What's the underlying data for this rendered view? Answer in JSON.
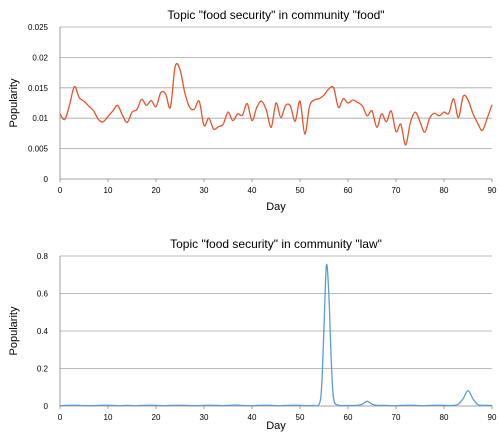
{
  "chart_data": [
    {
      "type": "line",
      "title": "Topic \"food security\" in community \"food\"",
      "xlabel": "Day",
      "ylabel": "Popularity",
      "xlim": [
        0,
        90
      ],
      "ylim": [
        0,
        0.025
      ],
      "xticks": [
        "0",
        "10",
        "20",
        "30",
        "40",
        "50",
        "60",
        "70",
        "80",
        "90"
      ],
      "yticks": [
        "0",
        "0.005",
        "0.01",
        "0.015",
        "0.02",
        "0.025"
      ],
      "grid": true,
      "series": [
        {
          "color": "#e8532a",
          "x": [
            0,
            1,
            2,
            3,
            4,
            5,
            6,
            7,
            8,
            9,
            10,
            11,
            12,
            13,
            14,
            15,
            16,
            17,
            18,
            19,
            20,
            21,
            22,
            23,
            24,
            25,
            26,
            27,
            28,
            29,
            30,
            31,
            32,
            33,
            34,
            35,
            36,
            37,
            38,
            39,
            40,
            41,
            42,
            43,
            44,
            45,
            46,
            47,
            48,
            49,
            50,
            51,
            52,
            53,
            54,
            55,
            56,
            57,
            58,
            59,
            60,
            61,
            62,
            63,
            64,
            65,
            66,
            67,
            68,
            69,
            70,
            71,
            72,
            73,
            74,
            75,
            76,
            77,
            78,
            79,
            80,
            81,
            82,
            83,
            84,
            85,
            86,
            87,
            88,
            89,
            90
          ],
          "values": [
            0.0107,
            0.0098,
            0.0122,
            0.0152,
            0.0134,
            0.0128,
            0.012,
            0.0112,
            0.0098,
            0.0094,
            0.0103,
            0.0112,
            0.0121,
            0.0105,
            0.0093,
            0.011,
            0.0114,
            0.0131,
            0.0121,
            0.0129,
            0.0119,
            0.0142,
            0.014,
            0.0118,
            0.0185,
            0.018,
            0.0142,
            0.0118,
            0.0115,
            0.0128,
            0.0088,
            0.01,
            0.0082,
            0.0086,
            0.009,
            0.011,
            0.0096,
            0.0107,
            0.0105,
            0.0124,
            0.0096,
            0.0118,
            0.0128,
            0.0113,
            0.0085,
            0.0125,
            0.0101,
            0.0121,
            0.012,
            0.0095,
            0.0128,
            0.0074,
            0.012,
            0.013,
            0.0132,
            0.0138,
            0.0148,
            0.015,
            0.0118,
            0.0132,
            0.0125,
            0.013,
            0.0126,
            0.012,
            0.0104,
            0.0112,
            0.0085,
            0.0107,
            0.0094,
            0.0112,
            0.0078,
            0.009,
            0.0056,
            0.0093,
            0.011,
            0.0094,
            0.0077,
            0.01,
            0.0108,
            0.0104,
            0.011,
            0.0108,
            0.0132,
            0.0101,
            0.0136,
            0.013,
            0.0108,
            0.0092,
            0.008,
            0.01,
            0.0122
          ]
        }
      ]
    },
    {
      "type": "line",
      "title": "Topic \"food security\" in community \"law\"",
      "xlabel": "Day",
      "ylabel": "Popularity",
      "xlim": [
        0,
        90
      ],
      "ylim": [
        0,
        0.8
      ],
      "xticks": [
        "0",
        "10",
        "20",
        "30",
        "40",
        "50",
        "60",
        "70",
        "80",
        "90"
      ],
      "yticks": [
        "0",
        "0.2",
        "0.4",
        "0.6",
        "0.8"
      ],
      "grid": true,
      "series": [
        {
          "color": "#5b9bd5",
          "x": [
            0,
            2,
            4,
            6,
            8,
            10,
            12,
            14,
            16,
            18,
            20,
            22,
            24,
            26,
            28,
            30,
            32,
            34,
            36,
            38,
            40,
            42,
            44,
            46,
            48,
            50,
            52,
            53,
            54,
            54.5,
            55,
            55.5,
            56,
            56.5,
            57,
            58,
            60,
            62,
            63,
            64,
            65,
            66,
            68,
            70,
            72,
            74,
            76,
            78,
            80,
            82,
            83,
            84,
            85,
            86,
            87,
            88,
            90
          ],
          "values": [
            0.002,
            0.004,
            0.003,
            0.002,
            0.003,
            0.004,
            0.002,
            0.003,
            0.002,
            0.004,
            0.003,
            0.002,
            0.004,
            0.003,
            0.002,
            0.003,
            0.004,
            0.002,
            0.005,
            0.003,
            0.002,
            0.004,
            0.003,
            0.002,
            0.004,
            0.003,
            0.002,
            0.003,
            0.01,
            0.1,
            0.42,
            0.75,
            0.6,
            0.25,
            0.04,
            0.005,
            0.003,
            0.004,
            0.01,
            0.025,
            0.01,
            0.004,
            0.003,
            0.002,
            0.004,
            0.003,
            0.002,
            0.004,
            0.003,
            0.003,
            0.01,
            0.04,
            0.082,
            0.04,
            0.008,
            0.004,
            0.003
          ]
        }
      ]
    }
  ]
}
